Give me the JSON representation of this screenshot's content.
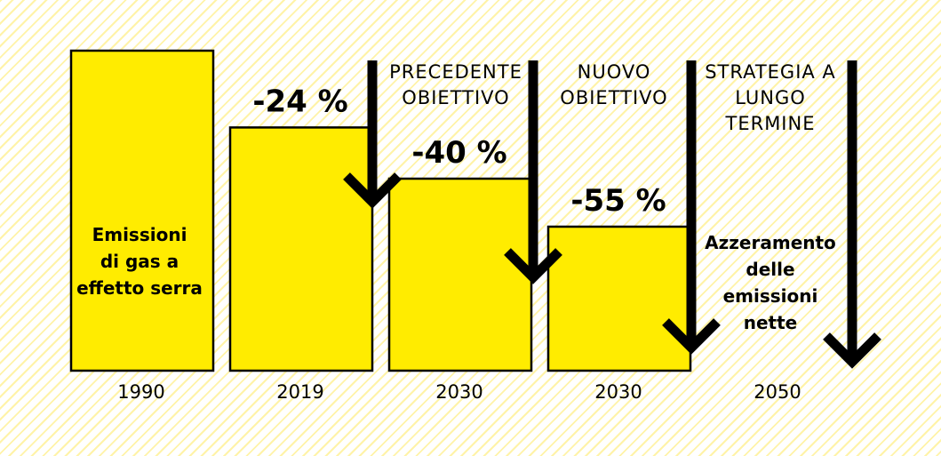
{
  "chart_data": {
    "type": "bar",
    "categories": [
      "1990",
      "2019",
      "2030",
      "2030",
      "2050"
    ],
    "values": [
      100,
      76,
      60,
      45,
      0
    ],
    "reduction_labels": [
      "",
      "-24 %",
      "-40 %",
      "-55 %",
      ""
    ],
    "headers": [
      {
        "lines": [
          "PRECEDENTE",
          "OBIETTIVO"
        ]
      },
      {
        "lines": [
          "NUOVO",
          "OBIETTIVO"
        ]
      },
      {
        "lines": [
          "STRATEGIA A",
          "LUNGO",
          "TERMINE"
        ]
      }
    ],
    "bar_label_lines": [
      "Emissioni",
      "di gas a",
      "effetto serra"
    ],
    "endpoint_label_lines": [
      "Azzeramento",
      "delle",
      "emissioni",
      "nette"
    ],
    "ylim": [
      0,
      100
    ],
    "colors": {
      "bar": "#ffec00",
      "arrow": "#000000",
      "stripe": "#fff3a8"
    }
  }
}
